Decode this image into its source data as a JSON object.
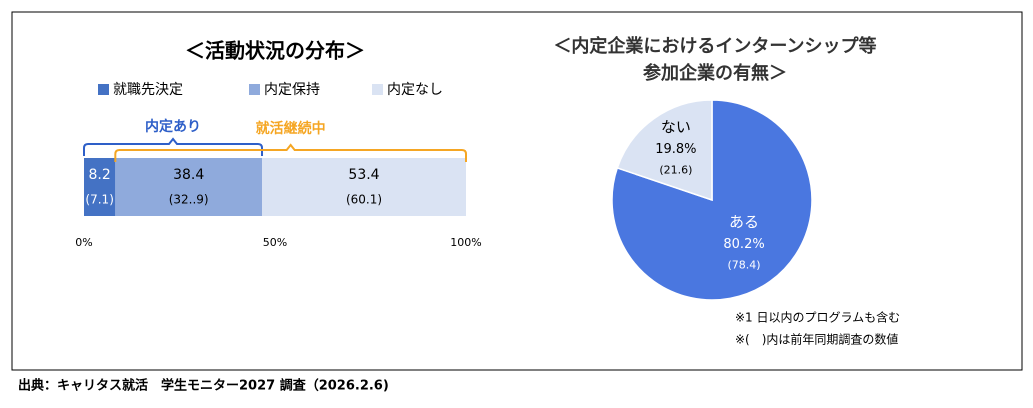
{
  "chart_data": [
    {
      "type": "bar",
      "orientation": "horizontal",
      "stacked": true,
      "title": "＜活動状況の分布＞",
      "categories": [
        null
      ],
      "series": [
        {
          "name": "就職先決定",
          "color": "#4472c4",
          "values": [
            8.2
          ],
          "prior_labels": [
            "(7.1)"
          ],
          "text_color": "#ffffff"
        },
        {
          "name": "内定保持",
          "color": "#8faadc",
          "values": [
            38.4
          ],
          "prior_labels": [
            "(32..9)"
          ],
          "text_color": "#000000"
        },
        {
          "name": "内定なし",
          "color": "#dae3f3",
          "values": [
            53.4
          ],
          "prior_labels": [
            "(60.1)"
          ],
          "text_color": "#000000"
        }
      ],
      "xlim": [
        0,
        100
      ],
      "xticks": [
        {
          "value": 0,
          "label": "0%"
        },
        {
          "value": 50,
          "label": "50%"
        },
        {
          "value": 100,
          "label": "100%"
        }
      ],
      "annotations": [
        {
          "text": "内定あり",
          "color": "#2e5fc8",
          "from": 0,
          "to": 46.6
        },
        {
          "text": "就活継続中",
          "color": "#f5a623",
          "from": 8.2,
          "to": 100
        }
      ]
    },
    {
      "type": "pie",
      "title": [
        "＜内定企業におけるインターンシップ等",
        "参加企業の有無＞"
      ],
      "categories": [
        "ある",
        "ない"
      ],
      "values": [
        80.2,
        19.8
      ],
      "value_labels": [
        "80.2%",
        "19.8%"
      ],
      "prior_labels": [
        "(78.4)",
        "(21.6)"
      ],
      "colors": [
        "#4a77e0",
        "#dae3f3"
      ],
      "notes": [
        "※1 日以内のプログラムも含む",
        "※(　)内は前年同期調査の数値"
      ]
    }
  ],
  "source": "出典：キャリタス就活　学生モニター2027 調査（2026.2.6)"
}
